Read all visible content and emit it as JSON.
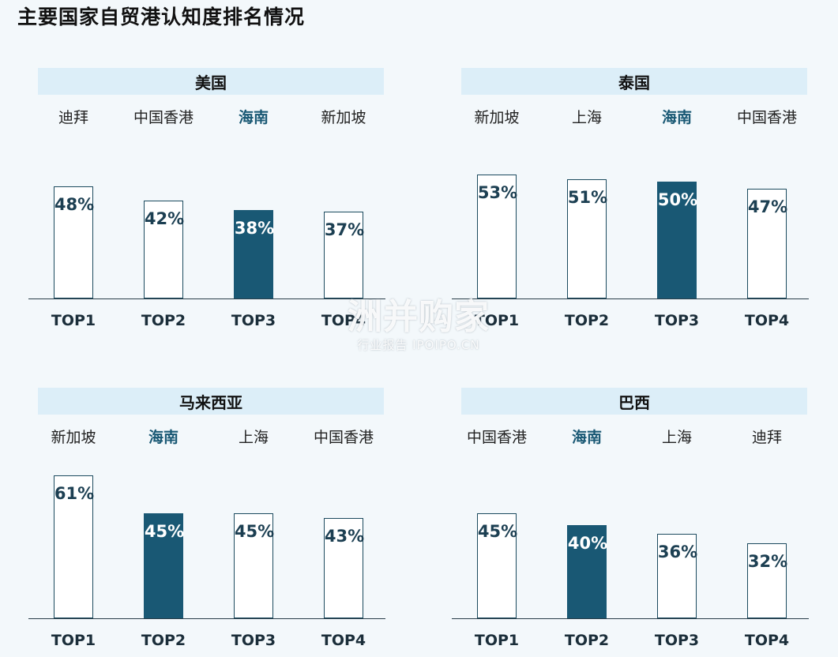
{
  "page_title": "主要国家自贸港认知度排名情况",
  "watermark": {
    "main": "洲并购家",
    "sub": "行业报告 IPOIPO.CN"
  },
  "colors": {
    "highlight": "#195874",
    "header_bg": "#dceef8",
    "border": "#1b4a5e"
  },
  "chart_data": [
    {
      "type": "bar",
      "title": "美国",
      "categories": [
        "迪拜",
        "中国香港",
        "海南",
        "新加坡"
      ],
      "ranks": [
        "TOP1",
        "TOP2",
        "TOP3",
        "TOP4"
      ],
      "values": [
        48,
        42,
        38,
        37
      ],
      "labels": [
        "48%",
        "42%",
        "38%",
        "37%"
      ],
      "highlight": "海南",
      "unit": "%",
      "ylim": [
        0,
        65
      ]
    },
    {
      "type": "bar",
      "title": "泰国",
      "categories": [
        "新加坡",
        "上海",
        "海南",
        "中国香港"
      ],
      "ranks": [
        "TOP1",
        "TOP2",
        "TOP3",
        "TOP4"
      ],
      "values": [
        53,
        51,
        50,
        47
      ],
      "labels": [
        "53%",
        "51%",
        "50%",
        "47%"
      ],
      "highlight": "海南",
      "unit": "%",
      "ylim": [
        0,
        65
      ]
    },
    {
      "type": "bar",
      "title": "马来西亚",
      "categories": [
        "新加坡",
        "海南",
        "上海",
        "中国香港"
      ],
      "ranks": [
        "TOP1",
        "TOP2",
        "TOP3",
        "TOP4"
      ],
      "values": [
        61,
        45,
        45,
        43
      ],
      "labels": [
        "61%",
        "45%",
        "45%",
        "43%"
      ],
      "highlight": "海南",
      "unit": "%",
      "ylim": [
        0,
        65
      ]
    },
    {
      "type": "bar",
      "title": "巴西",
      "categories": [
        "中国香港",
        "海南",
        "上海",
        "迪拜"
      ],
      "ranks": [
        "TOP1",
        "TOP2",
        "TOP3",
        "TOP4"
      ],
      "values": [
        45,
        40,
        36,
        32
      ],
      "labels": [
        "45%",
        "40%",
        "36%",
        "32%"
      ],
      "highlight": "海南",
      "unit": "%",
      "ylim": [
        0,
        65
      ]
    }
  ]
}
